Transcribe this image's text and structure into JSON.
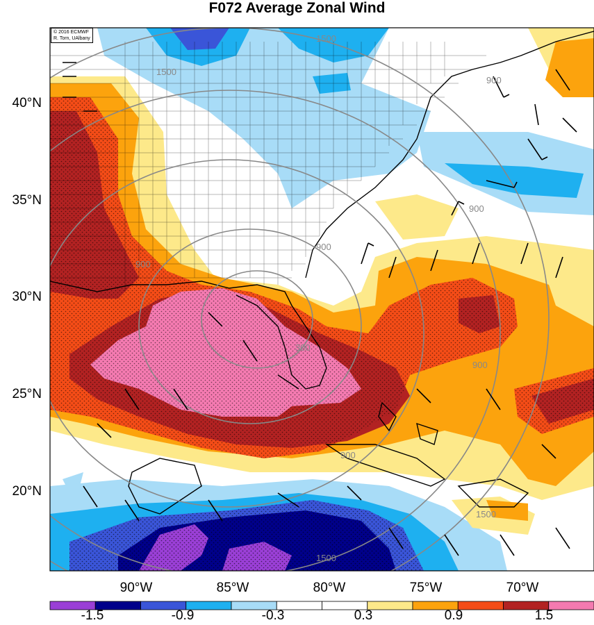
{
  "title": "F072 Average Zonal Wind",
  "credit": {
    "line1": "© 2016 ECMWF",
    "line2": "R. Torn, UAlbany"
  },
  "lat_labels": [
    "40°N",
    "35°N",
    "30°N",
    "25°N",
    "20°N"
  ],
  "lon_labels": [
    "90°W",
    "85°W",
    "80°W",
    "75°W",
    "70°W"
  ],
  "contour_labels": [
    "1500",
    "1500",
    "900",
    "900",
    "900",
    "900",
    "900",
    "300",
    "1500",
    "1500",
    "900"
  ],
  "colorbar": {
    "colors": [
      "#9a3fd6",
      "#00008a",
      "#3a55d8",
      "#1eb0f0",
      "#a8dcf7",
      "#ffffff",
      "#ffffff",
      "#fde98a",
      "#fca30d",
      "#f44c17",
      "#b22222",
      "#f47ab0"
    ],
    "labels": [
      "-1.5",
      "-0.9",
      "-0.3",
      "0.3",
      "0.9",
      "1.5"
    ]
  },
  "colors": {
    "pink": "#f47ab0",
    "darkred": "#b22222",
    "redorange": "#f44c17",
    "orange": "#fca30d",
    "yellow": "#fde98a",
    "lightblue": "#a8dcf7",
    "cyan": "#1eb0f0",
    "blue": "#3a55d8",
    "navy": "#00008a",
    "purple": "#9a3fd6"
  }
}
